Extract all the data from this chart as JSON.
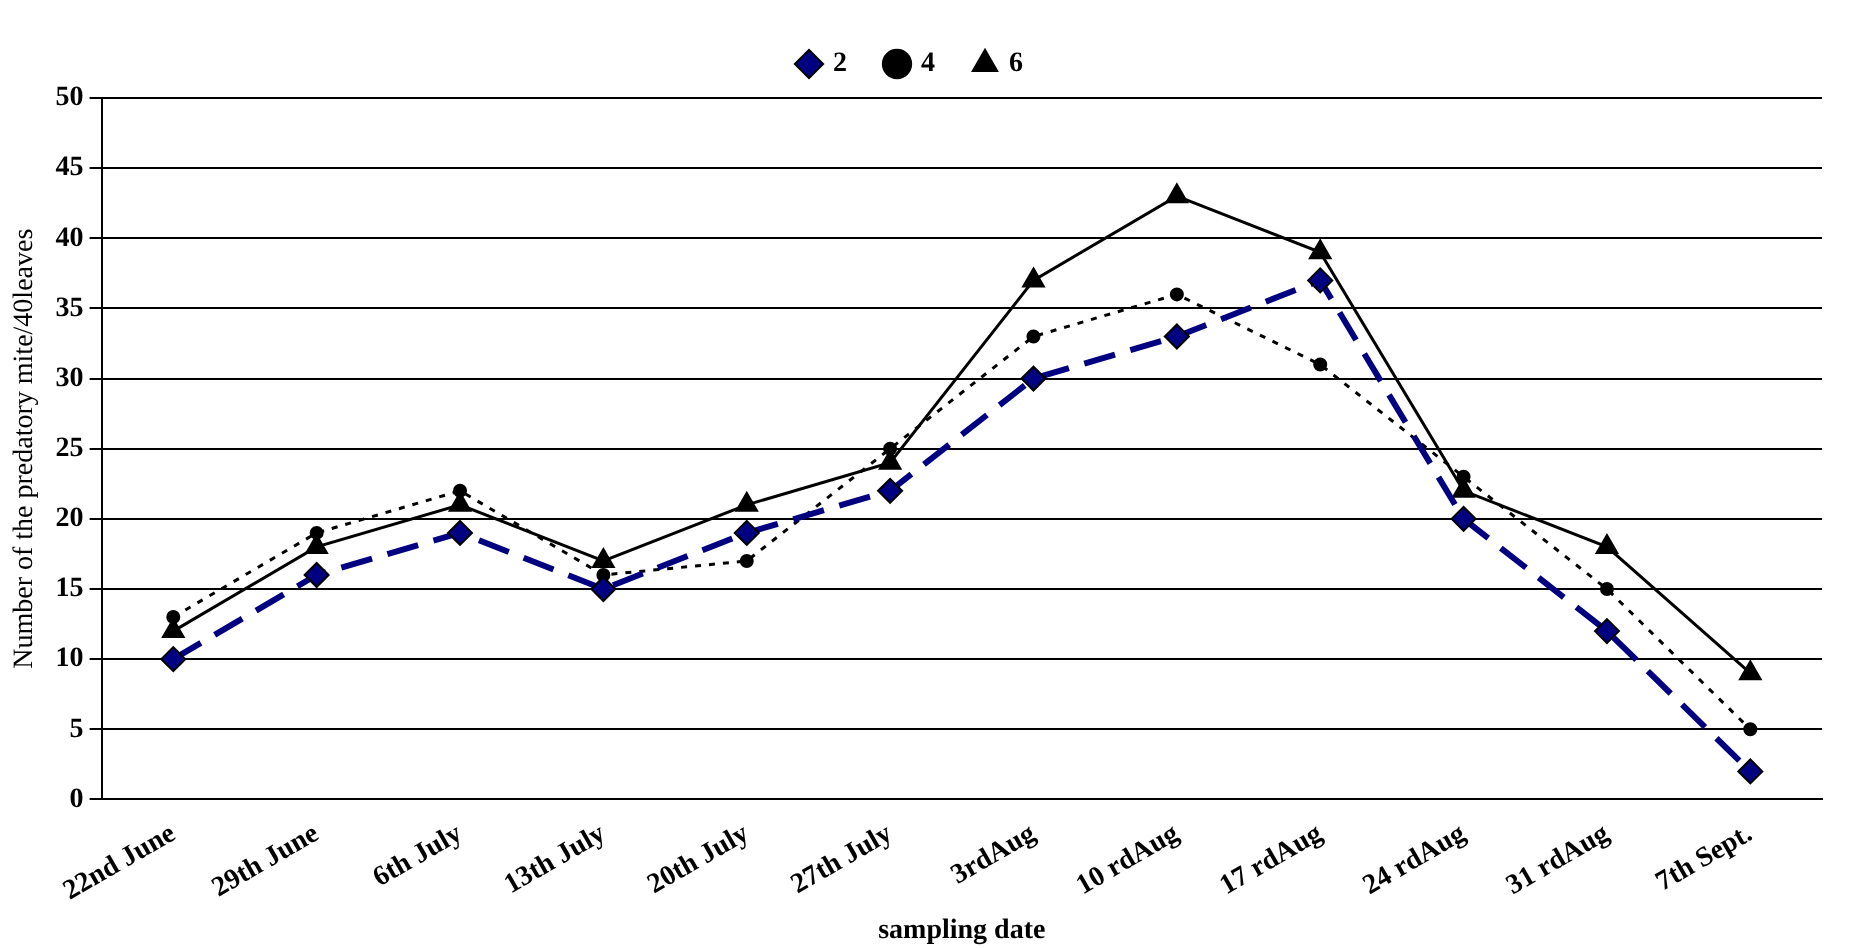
{
  "chart_data": {
    "type": "line",
    "xlabel": "sampling date",
    "ylabel": "Number of the predatory mite/40leaves",
    "categories": [
      "22nd June",
      "29th June",
      "6th July",
      "13th July",
      "20th July",
      "27th July",
      "3rdAug",
      "10 rdAug",
      "17 rdAug",
      "24 rdAug",
      "31 rdAug",
      "7th Sept."
    ],
    "series": [
      {
        "name": "2",
        "color": "#000080",
        "marker": "diamond",
        "line_style": "dashed",
        "values": [
          10,
          16,
          19,
          15,
          19,
          22,
          30,
          33,
          37,
          20,
          12,
          2
        ]
      },
      {
        "name": "4",
        "color": "#000000",
        "marker": "circle",
        "line_style": "dotted",
        "values": [
          13,
          19,
          22,
          16,
          17,
          25,
          33,
          36,
          31,
          23,
          15,
          5
        ]
      },
      {
        "name": "6",
        "color": "#000000",
        "marker": "triangle",
        "line_style": "solid",
        "values": [
          12,
          18,
          21,
          17,
          21,
          24,
          37,
          43,
          39,
          22,
          18,
          9
        ]
      }
    ],
    "ylim": [
      0,
      50
    ],
    "yticks": [
      0,
      5,
      10,
      15,
      20,
      25,
      30,
      35,
      40,
      45,
      50
    ],
    "grid": "y",
    "legend": "top"
  }
}
